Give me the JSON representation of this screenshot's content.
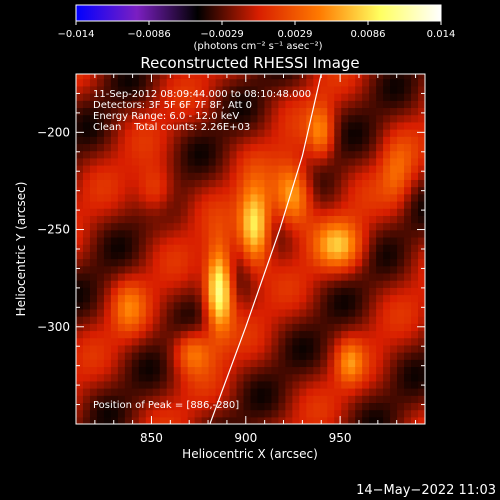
{
  "chart_data": {
    "type": "heatmap",
    "title": "Reconstructed RHESSI Image",
    "xlabel": "Heliocentric X (arcsec)",
    "ylabel": "Heliocentric Y (arcsec)",
    "xlim": [
      810,
      995
    ],
    "ylim": [
      -350,
      -170
    ],
    "x_ticks": [
      850,
      900,
      950
    ],
    "y_ticks": [
      -200,
      -250,
      -300
    ],
    "x_tick_labels": [
      "850",
      "900",
      "950"
    ],
    "y_tick_labels": [
      "−200",
      "−250",
      "−300"
    ],
    "colorbar": {
      "range": [
        -0.014,
        0.014
      ],
      "tick_labels": [
        "−0.014",
        "−0.0086",
        "−0.0029",
        "0.0029",
        "0.0086",
        "0.014"
      ],
      "units_label": "(photons cm⁻² s⁻¹ asec⁻²)",
      "colors": [
        "#0000ff",
        "#7b1fc2",
        "#000000",
        "#d81e00",
        "#ff7a00",
        "#ffff60",
        "#ffffff"
      ]
    },
    "annotations": [
      "11-Sep-2012 08:09:44.000 to 08:10:48.000",
      "Detectors: 3F 5F 6F 7F 8F, Att 0",
      "Energy Range: 6.0 - 12.0 keV",
      "Clean    Total counts: 2.26E+03"
    ],
    "peak_text": "Position of Peak = [886,-280]",
    "peak": [
      886,
      -280
    ],
    "limb_curve": [
      [
        881,
        -350
      ],
      [
        900,
        -300
      ],
      [
        918,
        -250
      ],
      [
        930,
        -212
      ],
      [
        940,
        -170
      ]
    ],
    "sources": [
      {
        "x": 886,
        "y": -280,
        "amp": 0.014,
        "sx": 5,
        "sy": 15
      },
      {
        "x": 905,
        "y": -248,
        "amp": 0.012,
        "sx": 6,
        "sy": 14
      },
      {
        "x": 925,
        "y": -232,
        "amp": 0.009,
        "sx": 7,
        "sy": 12
      },
      {
        "x": 950,
        "y": -258,
        "amp": 0.007,
        "sx": 9,
        "sy": 9
      },
      {
        "x": 940,
        "y": -200,
        "amp": 0.006,
        "sx": 5,
        "sy": 10
      },
      {
        "x": 872,
        "y": -312,
        "amp": 0.006,
        "sx": 7,
        "sy": 8
      },
      {
        "x": 955,
        "y": -318,
        "amp": 0.005,
        "sx": 5,
        "sy": 8
      },
      {
        "x": 852,
        "y": -230,
        "amp": 0.005,
        "sx": 7,
        "sy": 9
      },
      {
        "x": 838,
        "y": -290,
        "amp": 0.004,
        "sx": 6,
        "sy": 10
      },
      {
        "x": 980,
        "y": -222,
        "amp": 0.004,
        "sx": 6,
        "sy": 12
      }
    ]
  },
  "footer": {
    "timestamp": "14−May−2022 11:03"
  }
}
